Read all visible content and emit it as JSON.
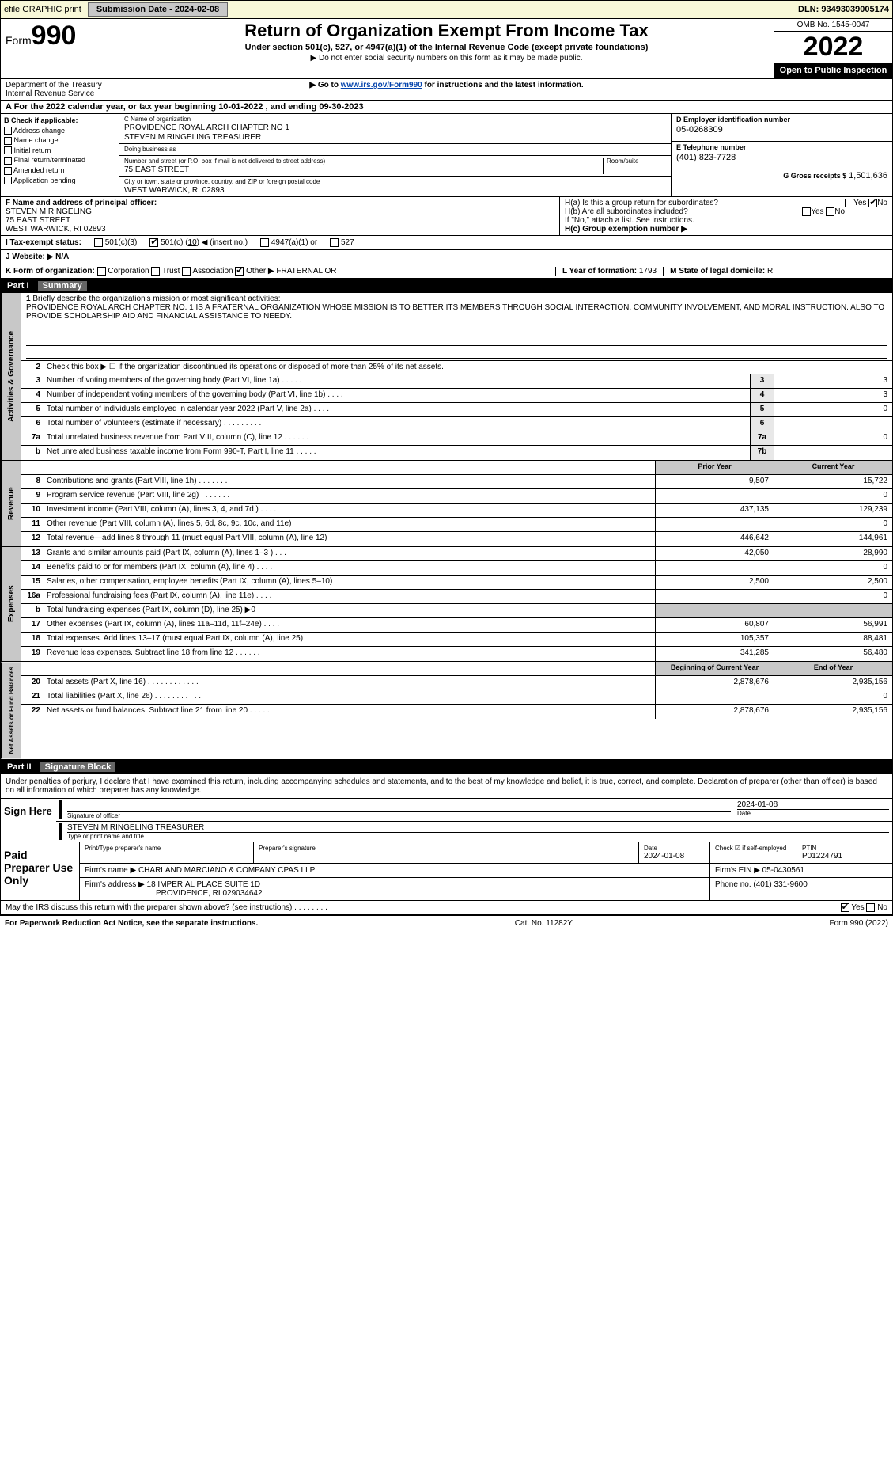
{
  "top": {
    "efile": "efile GRAPHIC print",
    "submission": "Submission Date - 2024-02-08",
    "dln": "DLN: 93493039005174"
  },
  "header": {
    "form": "990",
    "formword": "Form",
    "title": "Return of Organization Exempt From Income Tax",
    "sub": "Under section 501(c), 527, or 4947(a)(1) of the Internal Revenue Code (except private foundations)",
    "note1": "▶ Do not enter social security numbers on this form as it may be made public.",
    "note2_pre": "▶ Go to ",
    "note2_link": "www.irs.gov/Form990",
    "note2_post": " for instructions and the latest information.",
    "omb": "OMB No. 1545-0047",
    "year": "2022",
    "open": "Open to Public Inspection",
    "dept": "Department of the Treasury",
    "irs": "Internal Revenue Service"
  },
  "lineA": "A For the 2022 calendar year, or tax year beginning 10-01-2022    , and ending 09-30-2023",
  "colB": {
    "head": "B Check if applicable:",
    "items": [
      "Address change",
      "Name change",
      "Initial return",
      "Final return/terminated",
      "Amended return",
      "Application pending"
    ]
  },
  "colC": {
    "name_label": "C Name of organization",
    "name1": "PROVIDENCE ROYAL ARCH CHAPTER NO 1",
    "name2": "STEVEN M RINGELING TREASURER",
    "dba_label": "Doing business as",
    "dba": "",
    "addr_label": "Number and street (or P.O. box if mail is not delivered to street address)",
    "room_label": "Room/suite",
    "addr": "75 EAST STREET",
    "city_label": "City or town, state or province, country, and ZIP or foreign postal code",
    "city": "WEST WARWICK, RI  02893"
  },
  "colDE": {
    "d_label": "D Employer identification number",
    "d_val": "05-0268309",
    "e_label": "E Telephone number",
    "e_val": "(401) 823-7728",
    "g_label": "G Gross receipts $",
    "g_val": "1,501,636"
  },
  "rowF": {
    "label": "F  Name and address of principal officer:",
    "name": "STEVEN M RINGELING",
    "addr": "75 EAST STREET",
    "city": "WEST WARWICK, RI  02893"
  },
  "rowH": {
    "ha": "H(a)  Is this a group return for subordinates?",
    "ha_yes": "Yes",
    "ha_no": "No",
    "hb": "H(b)  Are all subordinates included?",
    "hb_yes": "Yes",
    "hb_no": "No",
    "hb_note": "If \"No,\" attach a list. See instructions.",
    "hc": "H(c)  Group exemption number ▶"
  },
  "rowI": {
    "label": "I    Tax-exempt status:",
    "o1": "501(c)(3)",
    "o2_pre": "501(c) (",
    "o2_num": "10",
    "o2_post": ") ◀ (insert no.)",
    "o3": "4947(a)(1) or",
    "o4": "527"
  },
  "rowJ": {
    "label": "J   Website: ▶",
    "val": "N/A"
  },
  "rowK": {
    "label": "K Form of organization:",
    "opts": [
      "Corporation",
      "Trust",
      "Association"
    ],
    "other": "Other ▶",
    "other_val": "FRATERNAL OR",
    "l_label": "L Year of formation:",
    "l_val": "1793",
    "m_label": "M State of legal domicile:",
    "m_val": "RI"
  },
  "part1": {
    "label": "Part I",
    "title": "Summary"
  },
  "gov": {
    "sidebar": "Activities & Governance",
    "l1": "Briefly describe the organization's mission or most significant activities:",
    "mission": "PROVIDENCE ROYAL ARCH CHAPTER NO. 1 IS A FRATERNAL ORGANIZATION WHOSE MISSION IS TO BETTER ITS MEMBERS THROUGH SOCIAL INTERACTION, COMMUNITY INVOLVEMENT, AND MORAL INSTRUCTION. ALSO TO PROVIDE SCHOLARSHIP AID AND FINANCIAL ASSISTANCE TO NEEDY.",
    "l2": "Check this box ▶ ☐  if the organization discontinued its operations or disposed of more than 25% of its net assets.",
    "rows": [
      {
        "n": "3",
        "d": "Number of voting members of the governing body (Part VI, line 1a)  .    .    .    .    .    .",
        "b": "3",
        "v": "3"
      },
      {
        "n": "4",
        "d": "Number of independent voting members of the governing body (Part VI, line 1b)  .    .    .    .",
        "b": "4",
        "v": "3"
      },
      {
        "n": "5",
        "d": "Total number of individuals employed in calendar year 2022 (Part V, line 2a)  .    .    .    .",
        "b": "5",
        "v": "0"
      },
      {
        "n": "6",
        "d": "Total number of volunteers (estimate if necessary)    .    .    .    .    .    .    .    .    .",
        "b": "6",
        "v": ""
      },
      {
        "n": "7a",
        "d": "Total unrelated business revenue from Part VIII, column (C), line 12  .    .    .    .    .    .",
        "b": "7a",
        "v": "0"
      },
      {
        "n": "b",
        "d": "Net unrelated business taxable income from Form 990-T, Part I, line 11  .    .    .    .    .",
        "b": "7b",
        "v": ""
      }
    ]
  },
  "rev": {
    "sidebar": "Revenue",
    "head_prior": "Prior Year",
    "head_curr": "Current Year",
    "rows": [
      {
        "n": "8",
        "d": "Contributions and grants (Part VIII, line 1h)   .    .    .    .    .    .    .",
        "p": "9,507",
        "c": "15,722"
      },
      {
        "n": "9",
        "d": "Program service revenue (Part VIII, line 2g)   .    .    .    .    .    .    .",
        "p": "",
        "c": "0"
      },
      {
        "n": "10",
        "d": "Investment income (Part VIII, column (A), lines 3, 4, and 7d )   .    .    .    .",
        "p": "437,135",
        "c": "129,239"
      },
      {
        "n": "11",
        "d": "Other revenue (Part VIII, column (A), lines 5, 6d, 8c, 9c, 10c, and 11e)",
        "p": "",
        "c": "0"
      },
      {
        "n": "12",
        "d": "Total revenue—add lines 8 through 11 (must equal Part VIII, column (A), line 12)",
        "p": "446,642",
        "c": "144,961"
      }
    ]
  },
  "exp": {
    "sidebar": "Expenses",
    "rows": [
      {
        "n": "13",
        "d": "Grants and similar amounts paid (Part IX, column (A), lines 1–3 )  .    .    .",
        "p": "42,050",
        "c": "28,990"
      },
      {
        "n": "14",
        "d": "Benefits paid to or for members (Part IX, column (A), line 4)  .    .    .    .",
        "p": "",
        "c": "0"
      },
      {
        "n": "15",
        "d": "Salaries, other compensation, employee benefits (Part IX, column (A), lines 5–10)",
        "p": "2,500",
        "c": "2,500"
      },
      {
        "n": "16a",
        "d": "Professional fundraising fees (Part IX, column (A), line 11e)  .    .    .    .",
        "p": "",
        "c": "0"
      },
      {
        "n": "b",
        "d": "Total fundraising expenses (Part IX, column (D), line 25) ▶0",
        "p": "shade",
        "c": "shade"
      },
      {
        "n": "17",
        "d": "Other expenses (Part IX, column (A), lines 11a–11d, 11f–24e)   .    .    .    .",
        "p": "60,807",
        "c": "56,991"
      },
      {
        "n": "18",
        "d": "Total expenses. Add lines 13–17 (must equal Part IX, column (A), line 25)",
        "p": "105,357",
        "c": "88,481"
      },
      {
        "n": "19",
        "d": "Revenue less expenses. Subtract line 18 from line 12  .    .    .    .    .    .",
        "p": "341,285",
        "c": "56,480"
      }
    ]
  },
  "net": {
    "sidebar": "Net Assets or Fund Balances",
    "head_prior": "Beginning of Current Year",
    "head_curr": "End of Year",
    "rows": [
      {
        "n": "20",
        "d": "Total assets (Part X, line 16)  .    .    .    .    .    .    .    .    .    .    .    .",
        "p": "2,878,676",
        "c": "2,935,156"
      },
      {
        "n": "21",
        "d": "Total liabilities (Part X, line 26)  .    .    .    .    .    .    .    .    .    .    .",
        "p": "",
        "c": "0"
      },
      {
        "n": "22",
        "d": "Net assets or fund balances. Subtract line 21 from line 20  .    .    .    .    .",
        "p": "2,878,676",
        "c": "2,935,156"
      }
    ]
  },
  "part2": {
    "label": "Part II",
    "title": "Signature Block"
  },
  "sig": {
    "decl": "Under penalties of perjury, I declare that I have examined this return, including accompanying schedules and statements, and to the best of my knowledge and belief, it is true, correct, and complete. Declaration of preparer (other than officer) is based on all information of which preparer has any knowledge.",
    "sign_here": "Sign Here",
    "sig_label": "Signature of officer",
    "date": "2024-01-08",
    "date_label": "Date",
    "name": "STEVEN M RINGELING  TREASURER",
    "name_label": "Type or print name and title"
  },
  "paid": {
    "left": "Paid Preparer Use Only",
    "h1": "Print/Type preparer's name",
    "h2": "Preparer's signature",
    "h3": "Date",
    "h3v": "2024-01-08",
    "h4": "Check ☑ if self-employed",
    "h5": "PTIN",
    "h5v": "P01224791",
    "firm_label": "Firm's name    ▶",
    "firm": "CHARLAND MARCIANO & COMPANY CPAS LLP",
    "ein_label": "Firm's EIN ▶",
    "ein": "05-0430561",
    "addr_label": "Firm's address ▶",
    "addr1": "18 IMPERIAL PLACE SUITE 1D",
    "addr2": "PROVIDENCE, RI  029034642",
    "phone_label": "Phone no.",
    "phone": "(401) 331-9600"
  },
  "may": {
    "q": "May the IRS discuss this return with the preparer shown above? (see instructions)   .    .    .    .    .    .    .    .",
    "yes": "Yes",
    "no": "No"
  },
  "footer": {
    "left": "For Paperwork Reduction Act Notice, see the separate instructions.",
    "mid": "Cat. No. 11282Y",
    "right": "Form 990 (2022)"
  }
}
